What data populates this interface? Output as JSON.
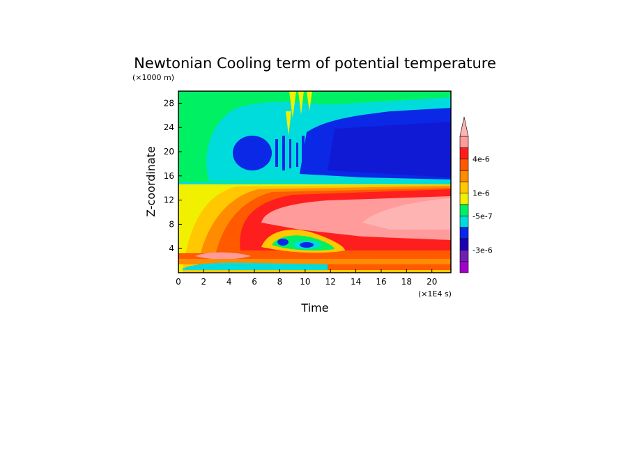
{
  "chart_data": {
    "type": "heatmap",
    "title": "Newtonian Cooling term of potential temperature",
    "xlabel": "Time",
    "ylabel": "Z-coordinate",
    "x_unit": "(×1E4 s)",
    "y_unit": "(×1000 m)",
    "xlim": [
      0,
      21.5
    ],
    "ylim": [
      0,
      30
    ],
    "xticks": [
      "0",
      "2",
      "4",
      "6",
      "8",
      "10",
      "12",
      "14",
      "16",
      "18",
      "20"
    ],
    "yticks": [
      "4",
      "8",
      "12",
      "16",
      "20",
      "24",
      "28"
    ],
    "colorbar": {
      "colors": [
        "#a000c8",
        "#6e1eb4",
        "#1e00b4",
        "#0a28e6",
        "#00dcdc",
        "#00f064",
        "#f0f000",
        "#ffc800",
        "#ff8c00",
        "#ff5a00",
        "#ff1e1e",
        "#ff9b9b",
        "#ffb4b4"
      ],
      "labels": [
        "-3e-6",
        "-5e-7",
        "1e-6",
        "4e-6"
      ],
      "extend": "max"
    },
    "regions": [
      {
        "level": "green",
        "t": [
          0,
          21.5
        ],
        "z": [
          14.8,
          30
        ]
      },
      {
        "level": "cyan",
        "t": [
          2.5,
          21.5
        ],
        "z": [
          15,
          29
        ]
      },
      {
        "level": "blue",
        "t": [
          8,
          21.5
        ],
        "z": [
          15.5,
          26
        ]
      },
      {
        "level": "yellow",
        "t": [
          0,
          21.5
        ],
        "z": [
          0,
          14.8
        ]
      },
      {
        "level": "orange",
        "t": [
          1.5,
          21.5
        ],
        "z": [
          0.5,
          14.6
        ]
      },
      {
        "level": "red",
        "t": [
          4.5,
          21.5
        ],
        "z": [
          3,
          14
        ]
      },
      {
        "level": "pink",
        "t": [
          6.5,
          21.5
        ],
        "z": [
          7,
          13.5
        ]
      },
      {
        "level": "light-pink",
        "t": [
          15,
          21.5
        ],
        "z": [
          7.5,
          13
        ]
      },
      {
        "level": "light-green",
        "t": [
          6.5,
          12.5
        ],
        "z": [
          3,
          7
        ]
      },
      {
        "level": "cyan",
        "t": [
          0,
          11.5
        ],
        "z": [
          0.3,
          1.5
        ]
      }
    ]
  }
}
